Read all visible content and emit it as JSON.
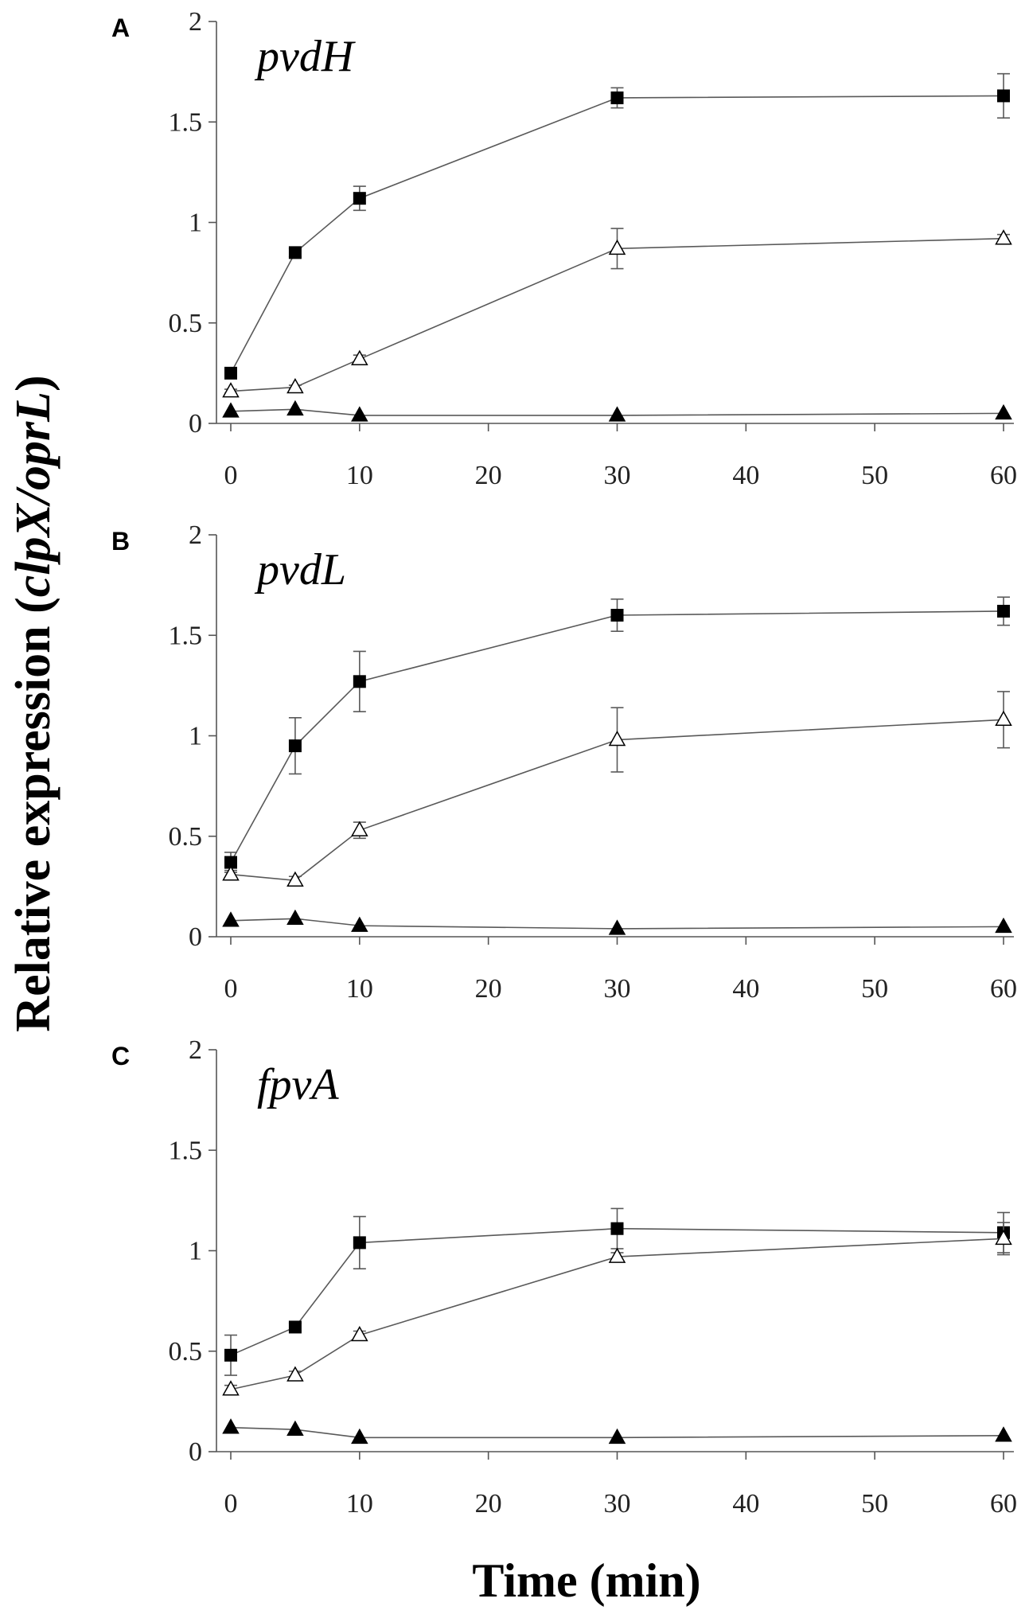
{
  "figure": {
    "xlabel": "Time (min)",
    "ylabel": "Relative expression (clpX/oprL)"
  },
  "style": {
    "marker_color": "#000000",
    "line_color": "#595959",
    "axis_color": "#555555"
  },
  "chart_data": [
    {
      "panel": "A",
      "title": "pvdH",
      "type": "line",
      "x": [
        0,
        5,
        10,
        30,
        60
      ],
      "xlim": [
        0,
        60
      ],
      "ylim": [
        0,
        2
      ],
      "xticks": [
        0,
        10,
        20,
        30,
        40,
        50,
        60
      ],
      "yticks": [
        0,
        0.5,
        1,
        1.5,
        2
      ],
      "grid": false,
      "series": [
        {
          "marker": "filled-square",
          "values": [
            0.25,
            0.85,
            1.12,
            1.62,
            1.63
          ],
          "errors": [
            0.02,
            0.02,
            0.06,
            0.05,
            0.11
          ]
        },
        {
          "marker": "open-triangle",
          "values": [
            0.16,
            0.18,
            0.32,
            0.87,
            0.92
          ],
          "errors": [
            0.01,
            0.01,
            0.02,
            0.1,
            0.02
          ]
        },
        {
          "marker": "filled-triangle",
          "values": [
            0.06,
            0.07,
            0.04,
            0.04,
            0.05
          ],
          "errors": [
            0,
            0,
            0,
            0,
            0
          ]
        }
      ]
    },
    {
      "panel": "B",
      "title": "pvdL",
      "type": "line",
      "x": [
        0,
        5,
        10,
        30,
        60
      ],
      "xlim": [
        0,
        60
      ],
      "ylim": [
        0,
        2
      ],
      "xticks": [
        0,
        10,
        20,
        30,
        40,
        50,
        60
      ],
      "yticks": [
        0,
        0.5,
        1,
        1.5,
        2
      ],
      "grid": false,
      "series": [
        {
          "marker": "filled-square",
          "values": [
            0.37,
            0.95,
            1.27,
            1.6,
            1.62
          ],
          "errors": [
            0.05,
            0.14,
            0.15,
            0.08,
            0.07
          ]
        },
        {
          "marker": "open-triangle",
          "values": [
            0.31,
            0.28,
            0.53,
            0.98,
            1.08
          ],
          "errors": [
            0.02,
            0.02,
            0.04,
            0.16,
            0.14
          ]
        },
        {
          "marker": "filled-triangle",
          "values": [
            0.08,
            0.09,
            0.055,
            0.04,
            0.05
          ],
          "errors": [
            0,
            0,
            0,
            0,
            0
          ]
        }
      ]
    },
    {
      "panel": "C",
      "title": "fpvA",
      "type": "line",
      "x": [
        0,
        5,
        10,
        30,
        60
      ],
      "xlim": [
        0,
        60
      ],
      "ylim": [
        0,
        2
      ],
      "xticks": [
        0,
        10,
        20,
        30,
        40,
        50,
        60
      ],
      "yticks": [
        0,
        0.5,
        1,
        1.5,
        2
      ],
      "grid": false,
      "series": [
        {
          "marker": "filled-square",
          "values": [
            0.48,
            0.62,
            1.04,
            1.11,
            1.09
          ],
          "errors": [
            0.1,
            0.02,
            0.13,
            0.1,
            0.1
          ]
        },
        {
          "marker": "open-triangle",
          "values": [
            0.31,
            0.38,
            0.58,
            0.97,
            1.06
          ],
          "errors": [
            0.02,
            0.02,
            0.02,
            0.02,
            0.08
          ]
        },
        {
          "marker": "filled-triangle",
          "values": [
            0.12,
            0.11,
            0.07,
            0.07,
            0.08
          ],
          "errors": [
            0,
            0,
            0,
            0,
            0
          ]
        }
      ]
    }
  ]
}
